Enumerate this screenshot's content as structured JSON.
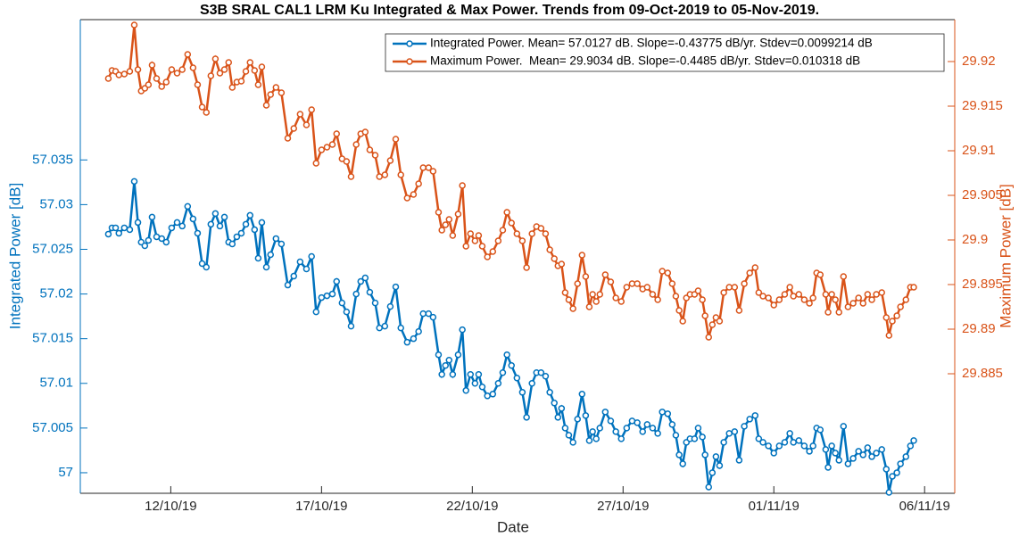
{
  "chart_data": {
    "type": "line",
    "title": "S3B SRAL CAL1 LRM Ku Integrated & Max Power. Trends from 09-Oct-2019 to 05-Nov-2019.",
    "x_label": "Date",
    "y_label": "Integrated Power [dB]",
    "y2_label": "Maximum Power [dB]",
    "legend": "top-right",
    "xlim": [
      9,
      38
    ],
    "xticks": [
      {
        "value": 12,
        "label": "12/10/19"
      },
      {
        "value": 17,
        "label": "17/10/19"
      },
      {
        "value": 22,
        "label": "22/10/19"
      },
      {
        "value": 27,
        "label": "27/10/19"
      },
      {
        "value": 32,
        "label": "01/11/19"
      },
      {
        "value": 37,
        "label": "06/11/19"
      }
    ],
    "ylim": [
      56.9977,
      57.0507
    ],
    "yticks": [
      57,
      57.005,
      57.01,
      57.015,
      57.02,
      57.025,
      57.03,
      57.035
    ],
    "y2lim": [
      29.8716,
      29.9247
    ],
    "y2ticks": [
      29.885,
      29.89,
      29.895,
      29.9,
      29.905,
      29.91,
      29.915,
      29.92
    ],
    "x": [
      9.93,
      10.05,
      10.17,
      10.28,
      10.46,
      10.64,
      10.79,
      10.91,
      11.02,
      11.14,
      11.26,
      11.38,
      11.53,
      11.7,
      11.85,
      12.03,
      12.21,
      12.38,
      12.56,
      12.74,
      12.89,
      13.04,
      13.18,
      13.33,
      13.48,
      13.63,
      13.78,
      13.92,
      14.04,
      14.19,
      14.34,
      14.49,
      14.63,
      14.78,
      14.9,
      15.02,
      15.17,
      15.31,
      15.49,
      15.67,
      15.88,
      16.08,
      16.29,
      16.5,
      16.67,
      16.82,
      17,
      17.18,
      17.36,
      17.5,
      17.68,
      17.83,
      17.98,
      18.15,
      18.3,
      18.45,
      18.6,
      18.78,
      18.92,
      19.1,
      19.28,
      19.46,
      19.63,
      19.84,
      20.05,
      20.22,
      20.37,
      20.55,
      20.7,
      20.88,
      20.99,
      21.11,
      21.23,
      21.35,
      21.53,
      21.67,
      21.79,
      21.94,
      22.09,
      22.21,
      22.33,
      22.5,
      22.68,
      22.86,
      23.01,
      23.15,
      23.3,
      23.48,
      23.66,
      23.8,
      23.98,
      24.13,
      24.28,
      24.43,
      24.57,
      24.72,
      24.84,
      24.96,
      25.08,
      25.2,
      25.34,
      25.49,
      25.64,
      25.76,
      25.88,
      25.99,
      26.11,
      26.23,
      26.41,
      26.59,
      26.76,
      26.94,
      27.12,
      27.3,
      27.47,
      27.65,
      27.8,
      27.98,
      28.15,
      28.3,
      28.48,
      28.63,
      28.75,
      28.86,
      28.98,
      29.1,
      29.22,
      29.37,
      29.49,
      29.63,
      29.72,
      29.84,
      29.96,
      30.08,
      30.2,
      30.34,
      30.52,
      30.7,
      30.85,
      31.02,
      31.2,
      31.38,
      31.5,
      31.64,
      31.82,
      32,
      32.18,
      32.36,
      32.53,
      32.65,
      32.83,
      33.01,
      33.18,
      33.3,
      33.42,
      33.54,
      33.72,
      33.8,
      33.92,
      34.04,
      34.16,
      34.31,
      34.46,
      34.63,
      34.81,
      34.96,
      35.11,
      35.25,
      35.4,
      35.58,
      35.73,
      35.82,
      35.93,
      36.08,
      36.2,
      36.38,
      36.53,
      36.64
    ],
    "series": [
      {
        "name": "Integrated Power. Mean= 57.0127 dB. Slope=-0.43775 dB/yr. Stdev=0.0099214 dB",
        "color": "#0072bd",
        "axis": "y",
        "values": [
          57.0267,
          57.0274,
          57.0274,
          57.0268,
          57.0274,
          57.0272,
          57.0326,
          57.028,
          57.0258,
          57.0254,
          57.026,
          57.0286,
          57.0264,
          57.0262,
          57.0258,
          57.0274,
          57.028,
          57.0276,
          57.0298,
          57.0284,
          57.0268,
          57.0234,
          57.023,
          57.0278,
          57.029,
          57.0276,
          57.0286,
          57.0258,
          57.0256,
          57.0264,
          57.0268,
          57.0278,
          57.0288,
          57.0272,
          57.024,
          57.028,
          57.023,
          57.0244,
          57.0262,
          57.0256,
          57.021,
          57.022,
          57.0236,
          57.0228,
          57.0242,
          57.018,
          57.0196,
          57.0198,
          57.02,
          57.0214,
          57.019,
          57.018,
          57.0164,
          57.02,
          57.0214,
          57.0218,
          57.0202,
          57.019,
          57.0162,
          57.0164,
          57.0186,
          57.0208,
          57.0162,
          57.0146,
          57.015,
          57.0158,
          57.0178,
          57.0178,
          57.0174,
          57.0132,
          57.011,
          57.012,
          57.0126,
          57.011,
          57.0132,
          57.016,
          57.0092,
          57.011,
          57.01,
          57.011,
          57.0096,
          57.0086,
          57.0088,
          57.01,
          57.0112,
          57.0132,
          57.012,
          57.0106,
          57.009,
          57.0062,
          57.01,
          57.0112,
          57.0112,
          57.0108,
          57.009,
          57.0078,
          57.0062,
          57.0072,
          57.005,
          57.0042,
          57.0034,
          57.006,
          57.0088,
          57.0064,
          57.0036,
          57.0046,
          57.0038,
          57.005,
          57.0068,
          57.0058,
          57.0046,
          57.0038,
          57.005,
          57.0058,
          57.0056,
          57.0046,
          57.0054,
          57.005,
          57.0044,
          57.0068,
          57.0066,
          57.0054,
          57.0042,
          57.002,
          57.001,
          57.0034,
          57.0038,
          57.0038,
          57.005,
          57.004,
          57.002,
          56.9984,
          57,
          57.0018,
          57.0008,
          57.0034,
          57.0044,
          57.0046,
          57.0014,
          57.0052,
          57.006,
          57.0064,
          57.0038,
          57.0034,
          57.003,
          57.0022,
          57.003,
          57.0034,
          57.0044,
          57.0034,
          57.0036,
          57.003,
          57.0024,
          57.003,
          57.005,
          57.0048,
          57.0026,
          57.0006,
          57.003,
          57.0022,
          57.0014,
          57.0052,
          57.001,
          57.0016,
          57.0024,
          57.002,
          57.0028,
          57.0018,
          57.0022,
          57.0026,
          57.0004,
          56.9978,
          56.9996,
          57,
          57.001,
          57.0018,
          57.003,
          57.0036
        ]
      },
      {
        "name": "Maximum Power.  Mean= 29.9034 dB. Slope=-0.4485 dB/yr. Stdev=0.010318 dB",
        "color": "#d95319",
        "axis": "y2",
        "values": [
          29.9181,
          29.919,
          29.9189,
          29.9185,
          29.9186,
          29.9189,
          29.9241,
          29.9191,
          29.9167,
          29.917,
          29.9174,
          29.9196,
          29.9181,
          29.9172,
          29.9177,
          29.9191,
          29.9187,
          29.9191,
          29.9208,
          29.9193,
          29.9174,
          29.9149,
          29.9143,
          29.9184,
          29.9203,
          29.9187,
          29.9191,
          29.9199,
          29.9171,
          29.9177,
          29.9178,
          29.9189,
          29.9199,
          29.919,
          29.9174,
          29.9194,
          29.9151,
          29.9163,
          29.9171,
          29.9165,
          29.9114,
          29.9125,
          29.9141,
          29.9129,
          29.9146,
          29.9086,
          29.9101,
          29.9104,
          29.9107,
          29.9119,
          29.9091,
          29.9088,
          29.9071,
          29.9107,
          29.9119,
          29.9121,
          29.9101,
          29.9095,
          29.9071,
          29.9073,
          29.9089,
          29.9113,
          29.9073,
          29.9047,
          29.9051,
          29.9063,
          29.9081,
          29.9081,
          29.9077,
          29.9031,
          29.9011,
          29.9017,
          29.9023,
          29.9005,
          29.9029,
          29.9061,
          29.8993,
          29.9007,
          29.8999,
          29.9005,
          29.8993,
          29.8981,
          29.8987,
          29.8999,
          29.9011,
          29.9031,
          29.9019,
          29.9007,
          29.8999,
          29.8969,
          29.9007,
          29.9015,
          29.9013,
          29.9007,
          29.8989,
          29.8979,
          29.8971,
          29.8973,
          29.8941,
          29.8933,
          29.8923,
          29.8951,
          29.8983,
          29.8959,
          29.8925,
          29.8939,
          29.8931,
          29.8939,
          29.8961,
          29.8953,
          29.8935,
          29.8931,
          29.8947,
          29.8951,
          29.8951,
          29.8945,
          29.8947,
          29.8939,
          29.8933,
          29.8965,
          29.8963,
          29.8951,
          29.8937,
          29.8921,
          29.8909,
          29.8935,
          29.8939,
          29.8939,
          29.8943,
          29.8933,
          29.8915,
          29.8891,
          29.8905,
          29.8913,
          29.8909,
          29.8941,
          29.8947,
          29.8947,
          29.8921,
          29.8951,
          29.8963,
          29.8969,
          29.8941,
          29.8937,
          29.8935,
          29.8927,
          29.8933,
          29.8939,
          29.8947,
          29.8937,
          29.8939,
          29.8933,
          29.8929,
          29.8935,
          29.8963,
          29.8961,
          29.8939,
          29.8919,
          29.8939,
          29.8933,
          29.8919,
          29.8959,
          29.8925,
          29.8929,
          29.8935,
          29.8929,
          29.8939,
          29.8933,
          29.8939,
          29.8941,
          29.8913,
          29.8893,
          29.8909,
          29.8915,
          29.8925,
          29.8933,
          29.8947,
          29.8947
        ]
      }
    ]
  }
}
